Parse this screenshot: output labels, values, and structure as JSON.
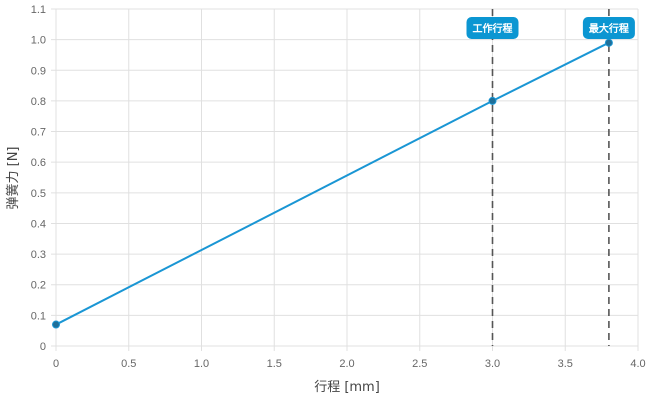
{
  "chart_data": {
    "type": "line",
    "xlabel": "行程 [mm]",
    "ylabel": "弹簧力 [N]",
    "xlim": [
      0,
      4.0
    ],
    "ylim": [
      0,
      1.1
    ],
    "xticks": [
      "0",
      "0.5",
      "1.0",
      "1.5",
      "2.0",
      "2.5",
      "3.0",
      "3.5",
      "4.0"
    ],
    "yticks": [
      "0",
      "0.1",
      "0.2",
      "0.3",
      "0.4",
      "0.5",
      "0.6",
      "0.7",
      "0.8",
      "0.9",
      "1.0",
      "1.1"
    ],
    "grid": true,
    "series": [
      {
        "x": [
          0,
          3.0,
          3.8
        ],
        "y": [
          0.07,
          0.8,
          0.99
        ],
        "color": "#1a96d4"
      }
    ],
    "annotations": [
      {
        "x": 3.0,
        "label": "工作行程"
      },
      {
        "x": 3.8,
        "label": "最大行程"
      }
    ],
    "annotation_color": "#0b96d2",
    "marker_line_color": "#555555"
  }
}
